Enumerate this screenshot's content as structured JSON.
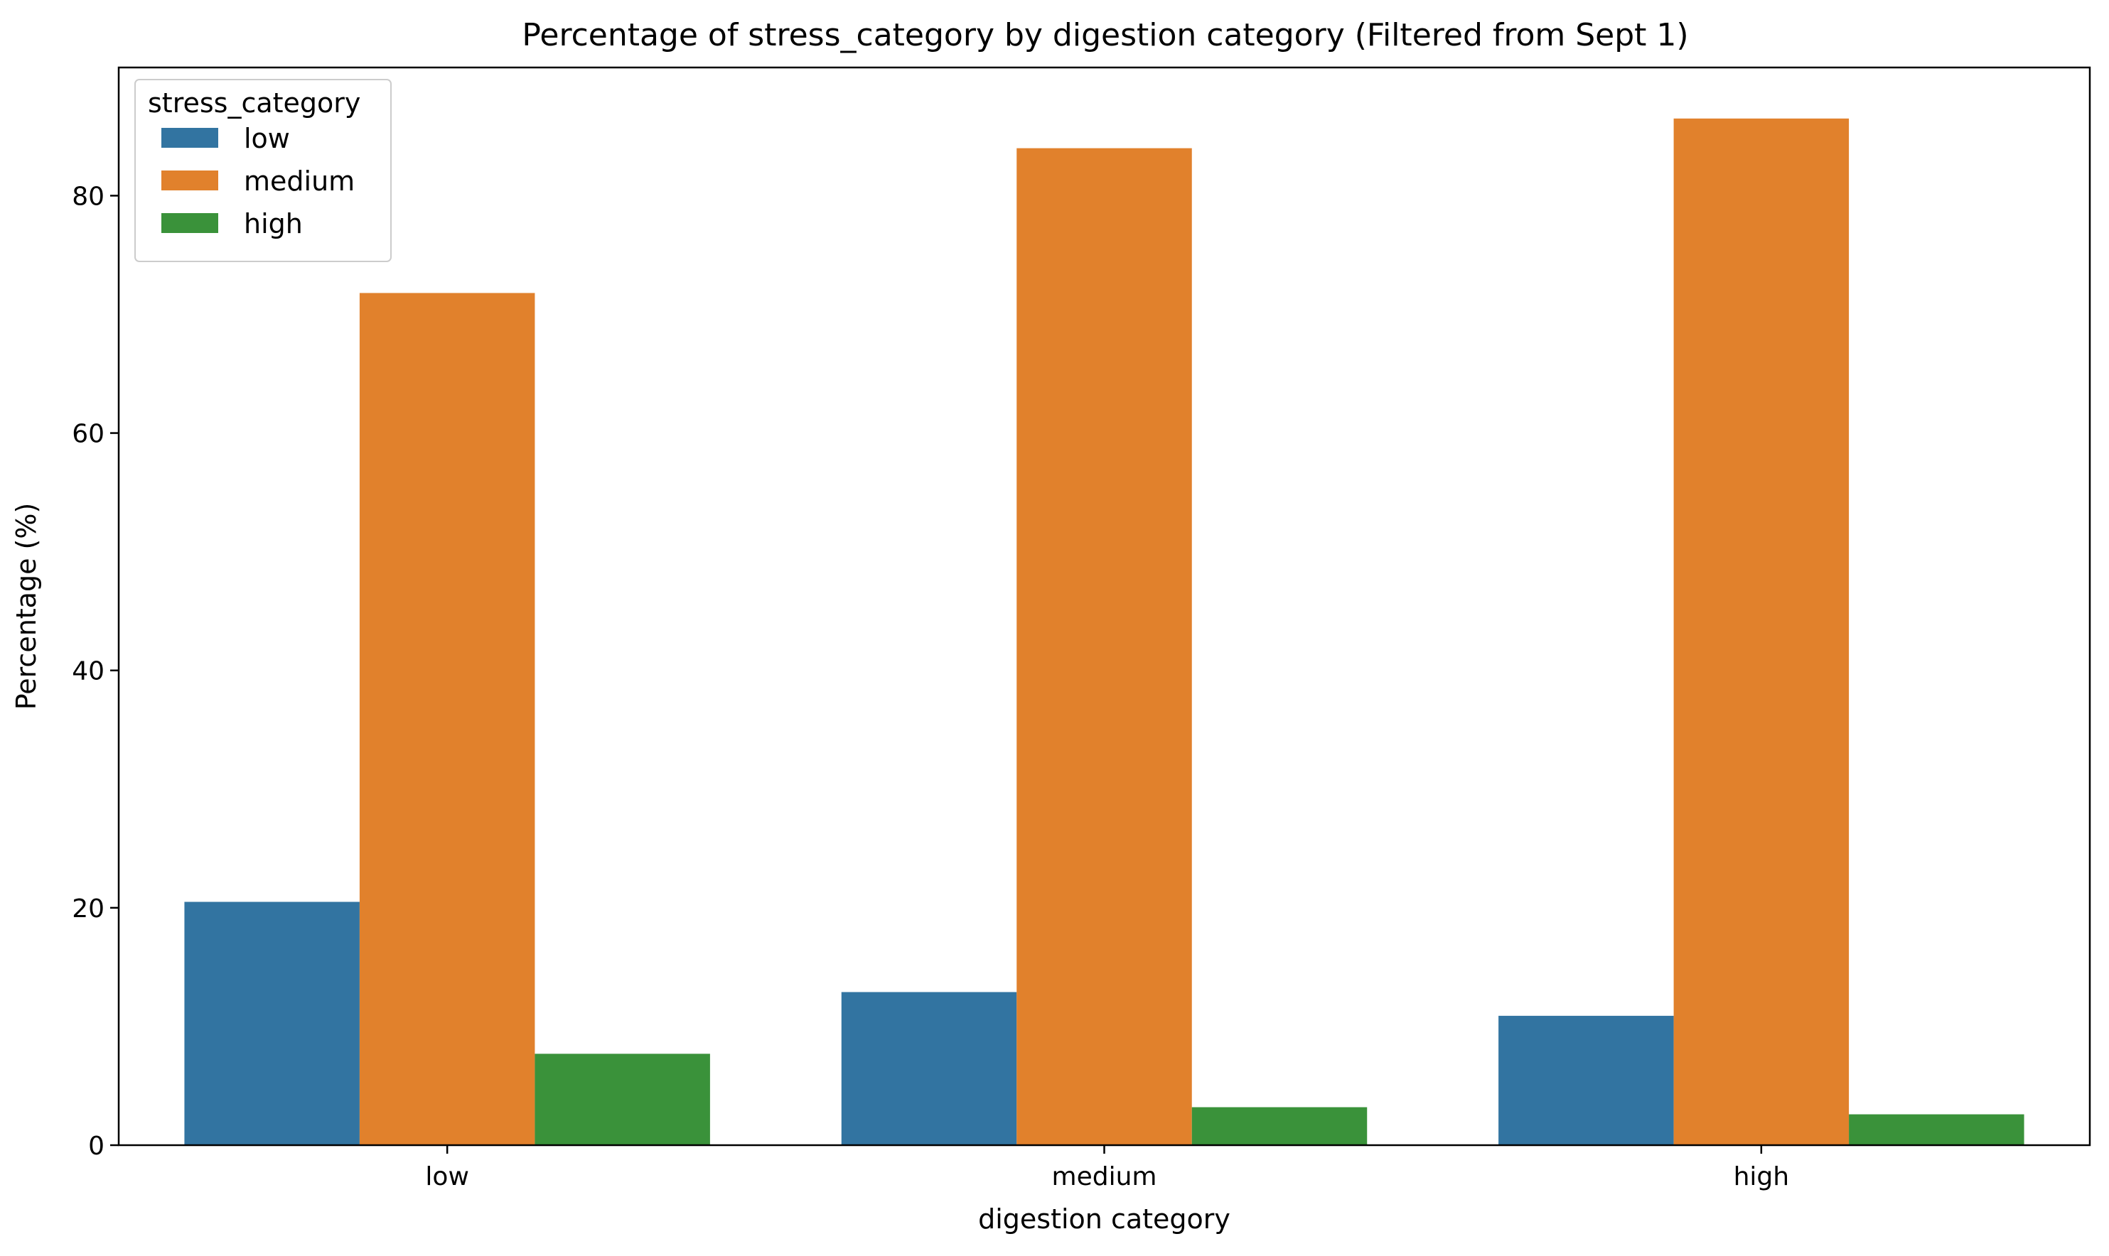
{
  "chart_data": {
    "type": "bar",
    "title": "Percentage of stress_category by digestion category (Filtered from Sept 1)",
    "xlabel": "digestion category",
    "ylabel": "Percentage (%)",
    "categories": [
      "low",
      "medium",
      "high"
    ],
    "series": [
      {
        "name": "low",
        "color": "#3274a1",
        "values": [
          20.5,
          12.9,
          10.9
        ]
      },
      {
        "name": "medium",
        "color": "#e1812c",
        "values": [
          71.8,
          84.0,
          86.5
        ]
      },
      {
        "name": "high",
        "color": "#3a923a",
        "values": [
          7.7,
          3.2,
          2.6
        ]
      }
    ],
    "ylim": [
      0,
      90.8
    ],
    "yticks": [
      0,
      20,
      40,
      60,
      80
    ],
    "grid": false,
    "legend": {
      "title": "stress_category",
      "placement": "top-left"
    }
  }
}
